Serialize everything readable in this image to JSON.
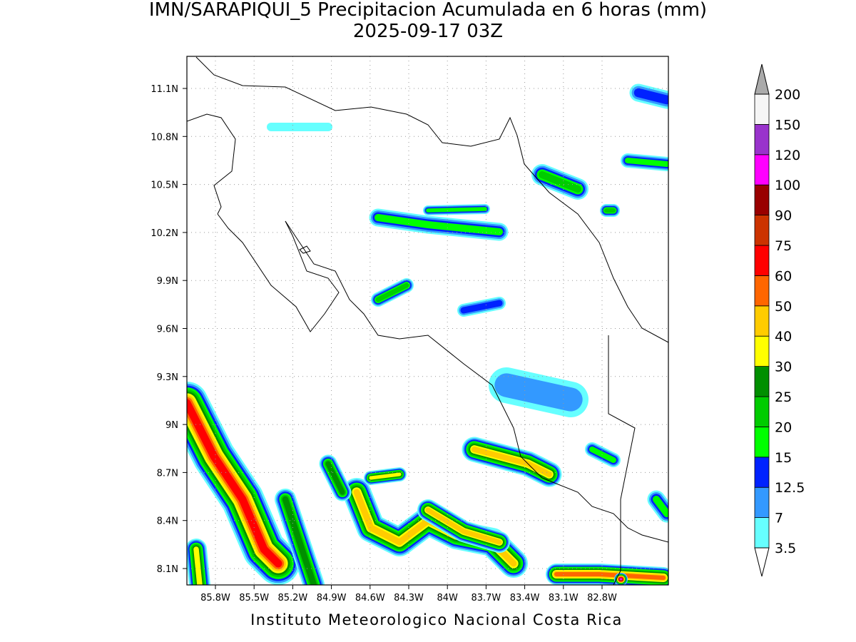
{
  "title": "IMN/SARAPIQUI_5 Precipitacion Acumulada en 6 horas (mm)",
  "subtitle": "2025-09-17 03Z",
  "x_axis": {
    "ticks": [
      "85.8W",
      "85.5W",
      "85.2W",
      "84.9W",
      "84.6W",
      "84.3W",
      "84W",
      "83.7W",
      "83.4W",
      "83.1W",
      "82.8W"
    ]
  },
  "y_axis": {
    "ticks": [
      "11.1N",
      "10.8N",
      "10.5N",
      "10.2N",
      "9.9N",
      "9.6N",
      "9.3N",
      "9N",
      "8.7N",
      "8.4N",
      "8.1N"
    ]
  },
  "colorbar": {
    "levels": [
      3.5,
      7,
      12.5,
      15,
      20,
      25,
      30,
      40,
      50,
      60,
      75,
      90,
      100,
      120,
      150,
      200
    ],
    "colors": [
      "#66ffff",
      "#3399ff",
      "#0022ff",
      "#00ff00",
      "#00cc00",
      "#008f00",
      "#ffff00",
      "#ffcc00",
      "#ff6600",
      "#ff0000",
      "#cc3300",
      "#990000",
      "#ff00ff",
      "#9933cc",
      "#f5f5f5"
    ],
    "under_color": "#ffffff",
    "over_color": "#aaaaaa"
  },
  "footer": "Instituto Meteorologico Nacional Costa Rica"
}
